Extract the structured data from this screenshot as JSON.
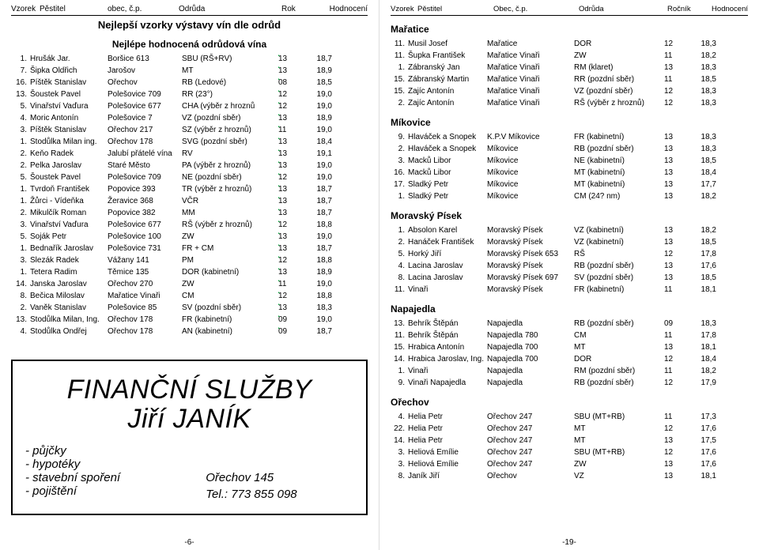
{
  "left": {
    "header": {
      "c1": "Vzorek",
      "c2": "Pěstitel",
      "c3": "obec, č.p.",
      "c4": "Odrůda",
      "c5": "Rok",
      "c6": "Hodnocení"
    },
    "title1": "Nejlepší vzorky výstavy vín dle odrůd",
    "title2": "Nejlépe hodnocená odrůdová vína",
    "rows": [
      [
        "1.",
        "Hrušák Jar.",
        "Boršice 613",
        "SBU (RŠ+RV)",
        "13",
        "18,7"
      ],
      [
        "7.",
        "Šipka Oldřich",
        "Jarošov",
        "MT",
        "13",
        "18,9"
      ],
      [
        "16.",
        "Píštěk Stanislav",
        "Ořechov",
        "RB (Ledové)",
        "08",
        "18,5"
      ],
      [
        "13.",
        "Šoustek Pavel",
        "Polešovice 709",
        "RR (23°)",
        "12",
        "19,0"
      ],
      [
        "5.",
        "Vinařství Vaďura",
        "Polešovice 677",
        "CHA (výběr z hroznů",
        "12",
        "19,0"
      ],
      [
        "4.",
        "Moric Antonín",
        "Polešovice 7",
        "VZ (pozdní sběr)",
        "13",
        "18,9"
      ],
      [
        "3.",
        "Píštěk Stanislav",
        "Ořechov 217",
        "SZ (výběr z hroznů)",
        "11",
        "19,0"
      ],
      [
        "1.",
        "Stodůlka Milan ing.",
        "Ořechov 178",
        "SVG (pozdní sběr)",
        "13",
        "18,4"
      ],
      [
        "2.",
        "Keňo Radek",
        "Jalubí přátelé vína",
        "RV",
        "13",
        "19,1"
      ],
      [
        "2.",
        "Pelka Jaroslav",
        "Staré Město",
        "PA (výběr z hroznů)",
        "13",
        "19,0"
      ],
      [
        "5.",
        "Šoustek Pavel",
        "Polešovice 709",
        "NE (pozdní sběr)",
        "12",
        "19,0"
      ],
      [
        "1.",
        "Tvrdoň František",
        "Popovice 393",
        "TR (výběr z hroznů)",
        "13",
        "18,7"
      ],
      [
        "1.",
        "Žůrci - Vídeňka",
        "Žeravice 368",
        "VČR",
        "13",
        "18,7"
      ],
      [
        "2.",
        "Mikulčík Roman",
        "Popovice 382",
        "MM",
        "13",
        "18,7"
      ],
      [
        "3.",
        "Vinařství Vaďura",
        "Polešovice 677",
        "RŠ (výběr z hroznů)",
        "12",
        "18,8"
      ],
      [
        "5.",
        "Soják Petr",
        "Polešovice 100",
        "ZW",
        "13",
        "19,0"
      ],
      [
        "1.",
        "Bednařík Jaroslav",
        "Polešovice 731",
        "FR + CM",
        "13",
        "18,7"
      ],
      [
        "3.",
        "Slezák Radek",
        "Vážany 141",
        "PM",
        "12",
        "18,8"
      ],
      [
        "1.",
        "Tetera Radim",
        "Těmice 135",
        "DOR (kabinetní)",
        "13",
        "18,9"
      ],
      [
        "14.",
        "Janska Jaroslav",
        "Ořechov 270",
        "ZW",
        "11",
        "19,0"
      ],
      [
        "8.",
        "Bečica Miloslav",
        "Mařatice Vinaři",
        "CM",
        "12",
        "18,8"
      ],
      [
        "2.",
        "Vaněk Stanislav",
        "Polešovice 85",
        "SV (pozdní sběr)",
        "13",
        "18,3"
      ],
      [
        "13.",
        "Stodůlka Milan, Ing.",
        "Ořechov 178",
        "FR (kabinetní)",
        "09",
        "19,0"
      ],
      [
        "4.",
        "Stodůlka Ondřej",
        "Ořechov 178",
        "AN (kabinetní)",
        "09",
        "18,7"
      ]
    ],
    "ad": {
      "line1": "FINANČNÍ SLUŽBY",
      "line2": "Jiří JANÍK",
      "bullets": [
        "půjčky",
        "hypotéky",
        "stavební spoření",
        "pojištění"
      ],
      "addr": "Ořechov 145",
      "tel": "Tel.: 773 855 098"
    },
    "footer": "-6-"
  },
  "right": {
    "header": {
      "r1": "Vzorek",
      "r2": "Pěstitel",
      "r3": "Obec, č.p.",
      "r4": "Odrůda",
      "r5": "Ročník",
      "r6": "Hodnocení"
    },
    "sections": [
      {
        "title": "Mařatice",
        "rows": [
          [
            "11.",
            "Musil Josef",
            "Mařatice",
            "DOR",
            "12",
            "18,3"
          ],
          [
            "11.",
            "Šupka František",
            "Mařatice Vinaři",
            "ZW",
            "11",
            "18,2"
          ],
          [
            "1.",
            "Zábranský Jan",
            "Mařatice Vinaři",
            "RM (klaret)",
            "13",
            "18,3"
          ],
          [
            "15.",
            "Zábranský Martin",
            "Mařatice Vinaři",
            "RR (pozdní sběr)",
            "11",
            "18,5"
          ],
          [
            "15.",
            "Zajíc Antonín",
            "Mařatice Vinaři",
            "VZ (pozdní sběr)",
            "12",
            "18,3"
          ],
          [
            "2.",
            "Zajíc Antonín",
            "Mařatice Vinaři",
            "RŠ (výběr z hroznů)",
            "12",
            "18,3"
          ]
        ]
      },
      {
        "title": "Míkovice",
        "rows": [
          [
            "9.",
            "Hlaváček a Snopek",
            "K.P.V Míkovice",
            "FR (kabinetní)",
            "13",
            "18,3"
          ],
          [
            "2.",
            "Hlaváček a Snopek",
            "Míkovice",
            "RB (pozdní sběr)",
            "13",
            "18,3"
          ],
          [
            "3.",
            "Macků Libor",
            "Míkovice",
            "NE (kabinetní)",
            "13",
            "18,5"
          ],
          [
            "16.",
            "Macků Libor",
            "Míkovice",
            "MT (kabinetní)",
            "13",
            "18,4"
          ],
          [
            "17.",
            "Sladký Petr",
            "Míkovice",
            "MT (kabinetní)",
            "13",
            "17,7"
          ],
          [
            "1.",
            "Sladký Petr",
            "Míkovice",
            "CM (24? nm)",
            "13",
            "18,2"
          ]
        ]
      },
      {
        "title": "Moravský Písek",
        "rows": [
          [
            "1.",
            "Absolon Karel",
            "Moravský Písek",
            "VZ (kabinetní)",
            "13",
            "18,2"
          ],
          [
            "2.",
            "Hanáček František",
            "Moravský Písek",
            "VZ (kabinetní)",
            "13",
            "18,5"
          ],
          [
            "5.",
            "Horký Jiří",
            "Moravský Písek 653",
            "RŠ",
            "12",
            "17,8"
          ],
          [
            "4.",
            "Lacina Jaroslav",
            "Moravský Písek",
            "RB (pozdní sběr)",
            "13",
            "17,6"
          ],
          [
            "8.",
            "Lacina Jaroslav",
            "Moravský Písek 697",
            "SV (pozdní sběr)",
            "13",
            "18,5"
          ],
          [
            "11.",
            "Vinaři",
            "Moravský Písek",
            "FR (kabinetní)",
            "11",
            "18,1"
          ]
        ]
      },
      {
        "title": "Napajedla",
        "rows": [
          [
            "13.",
            "Behrík Štěpán",
            "Napajedla",
            "RB (pozdní sběr)",
            "09",
            "18,3"
          ],
          [
            "11.",
            "Behrík Štěpán",
            "Napajedla 780",
            "CM",
            "11",
            "17,8"
          ],
          [
            "15.",
            "Hrabica Antonín",
            "Napajedla 700",
            "MT",
            "13",
            "18,1"
          ],
          [
            "14.",
            "Hrabica Jaroslav, Ing.",
            "Napajedla 700",
            "DOR",
            "12",
            "18,4"
          ],
          [
            "1.",
            "Vinaři",
            "Napajedla",
            "RM (pozdní sběr)",
            "11",
            "18,2"
          ],
          [
            "9.",
            "Vinaři Napajedla",
            "Napajedla",
            "RB (pozdní sběr)",
            "12",
            "17,9"
          ]
        ]
      },
      {
        "title": "Ořechov",
        "rows": [
          [
            "4.",
            "Helia Petr",
            "Ořechov 247",
            "SBU (MT+RB)",
            "11",
            "17,3"
          ],
          [
            "22.",
            "Helia Petr",
            "Ořechov 247",
            "MT",
            "12",
            "17,6"
          ],
          [
            "14.",
            "Helia Petr",
            "Ořechov 247",
            "MT",
            "13",
            "17,5"
          ],
          [
            "3.",
            "Heliová Emílie",
            "Ořechov 247",
            "SBU (MT+RB)",
            "12",
            "17,6"
          ],
          [
            "3.",
            "Heliová Emílie",
            "Ořechov 247",
            "ZW",
            "13",
            "17,6"
          ],
          [
            "8.",
            "Janík Jiří",
            "Ořechov",
            "VZ",
            "13",
            "18,1"
          ]
        ]
      }
    ],
    "footer": "-19-"
  }
}
